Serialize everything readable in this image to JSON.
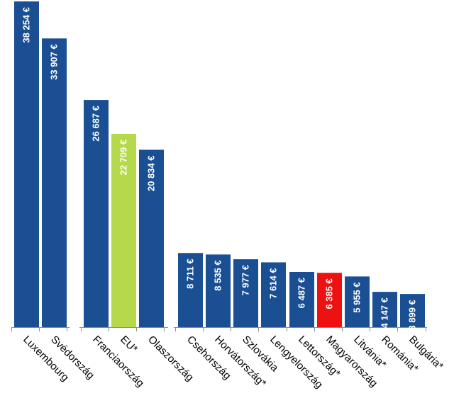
{
  "chart_data": {
    "type": "bar",
    "orientation": "vertical",
    "categories": [
      "Luxembourg",
      "Svédország",
      "Franciaország",
      "EU*",
      "Olaszország",
      "Csehország",
      "Horvátország*",
      "Szlovákia",
      "Lengyelország",
      "Lettország*",
      "Magyarország",
      "Litvánia*",
      "Románia*",
      "Bulgária*"
    ],
    "values": [
      38254,
      33907,
      26687,
      22709,
      20834,
      8711,
      8535,
      7977,
      7614,
      6487,
      6385,
      5955,
      4147,
      3899
    ],
    "value_labels": [
      "38 254 €",
      "33 907 €",
      "26 687 €",
      "22 709 €",
      "20 834 €",
      "8 711 €",
      "8 535 €",
      "7 977 €",
      "7 614 €",
      "6 487 €",
      "6 385 €",
      "5 955 €",
      "4 147 €",
      "3 899 €"
    ],
    "groups": [
      [
        0,
        1
      ],
      [
        2,
        3,
        4
      ],
      [
        5,
        6,
        7,
        8,
        9,
        10,
        11,
        12,
        13
      ]
    ],
    "colors": {
      "default": "#1a4f93",
      "EU*": "#b5d94a",
      "Magyarország": "#ee1111"
    },
    "ylim": [
      0,
      38254
    ],
    "title": "",
    "xlabel": "",
    "ylabel": "",
    "grid": false,
    "legend": "none"
  }
}
